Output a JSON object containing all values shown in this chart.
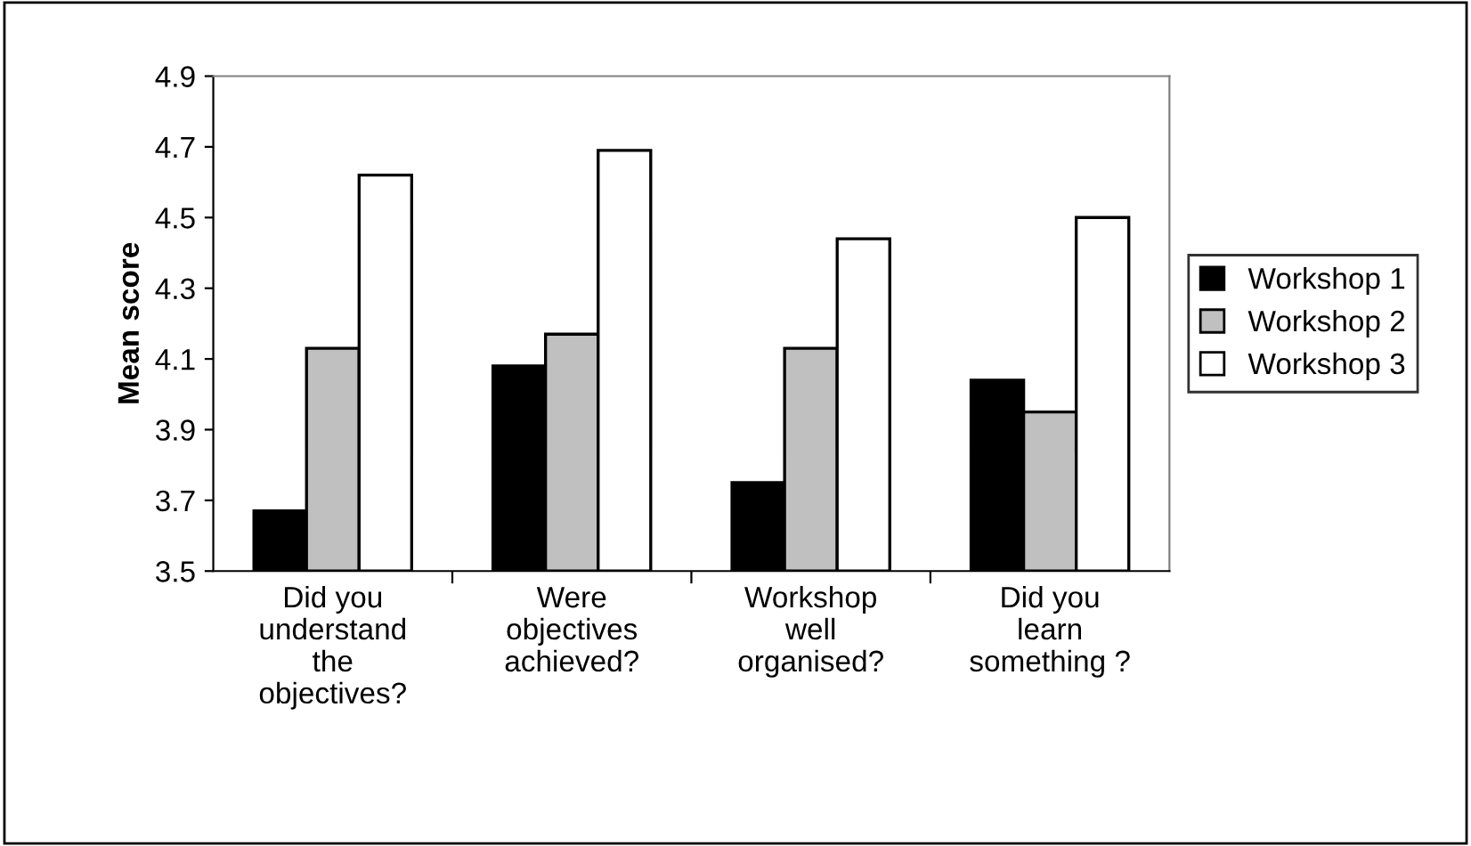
{
  "chart_data": {
    "type": "bar",
    "ylabel": "Mean score",
    "categories": [
      "Did you\nunderstand\nthe\nobjectives?",
      "Were\nobjectives\nachieved?",
      "Workshop\nwell\norganised?",
      "Did you\nlearn\nsomething ?"
    ],
    "series": [
      {
        "name": "Workshop 1",
        "color": "#000000",
        "values": [
          3.67,
          4.08,
          3.75,
          4.04
        ]
      },
      {
        "name": "Workshop 2",
        "color": "#c0c0c0",
        "values": [
          4.13,
          4.17,
          4.13,
          3.95
        ]
      },
      {
        "name": "Workshop 3",
        "color": "#ffffff",
        "values": [
          4.62,
          4.69,
          4.44,
          4.5
        ]
      }
    ],
    "ylim": [
      3.5,
      4.9
    ],
    "yticks": [
      3.5,
      3.7,
      3.9,
      4.1,
      4.3,
      4.5,
      4.7,
      4.9
    ],
    "grid": false,
    "legend": "right"
  }
}
